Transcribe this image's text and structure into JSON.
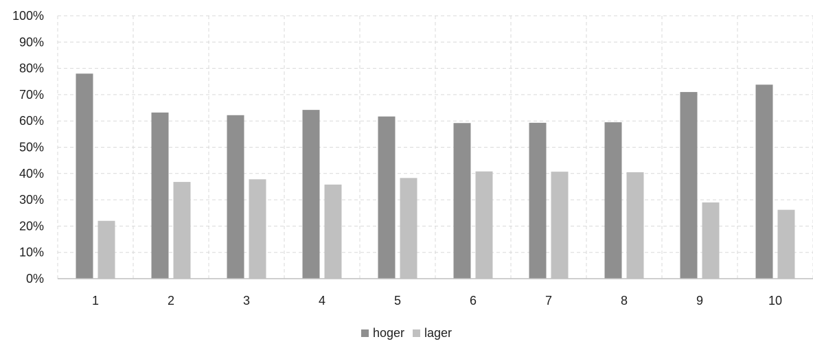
{
  "chart_data": {
    "type": "bar",
    "categories": [
      "1",
      "2",
      "3",
      "4",
      "5",
      "6",
      "7",
      "8",
      "9",
      "10"
    ],
    "series": [
      {
        "name": "hoger",
        "color": "#8f8f8f",
        "values": [
          0.78,
          0.632,
          0.622,
          0.642,
          0.617,
          0.592,
          0.593,
          0.595,
          0.71,
          0.738
        ]
      },
      {
        "name": "lager",
        "color": "#c0c0c0",
        "values": [
          0.22,
          0.368,
          0.378,
          0.358,
          0.383,
          0.408,
          0.407,
          0.405,
          0.29,
          0.262
        ]
      }
    ],
    "yticks": [
      "0%",
      "10%",
      "20%",
      "30%",
      "40%",
      "50%",
      "60%",
      "70%",
      "80%",
      "90%",
      "100%"
    ],
    "ylim": [
      0,
      1
    ],
    "grid": true,
    "legend_position": "bottom",
    "title": "",
    "xlabel": "",
    "ylabel": ""
  }
}
